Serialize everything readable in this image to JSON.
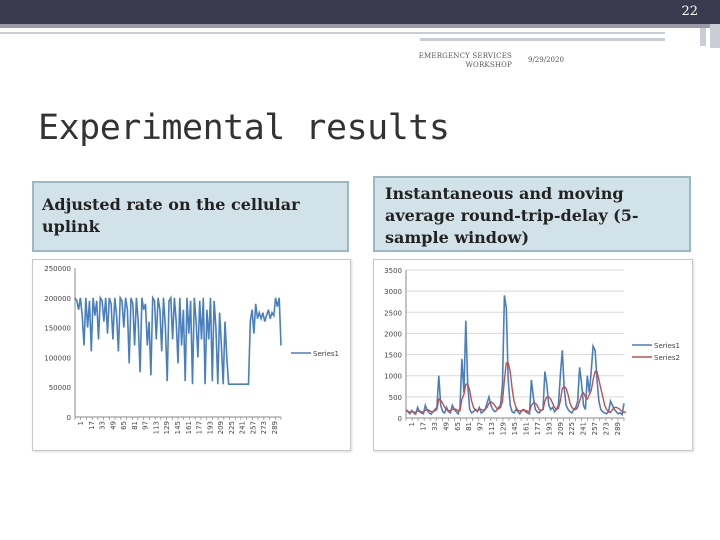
{
  "header": {
    "slide_number": "22",
    "event": "EMERGENCY SERVICES WORKSHOP",
    "date": "9/29/2020"
  },
  "title": "Experimental results",
  "captions": {
    "left": "Adjusted rate on the cellular uplink",
    "right": "Instantaneous and moving average round-trip-delay (5-sample window)"
  },
  "colors": {
    "series1": "#4a7fbd",
    "series2": "#c0504d",
    "caption_bg": "#d1e3e9",
    "topbar": "#3b3b4f"
  },
  "chart_data": [
    {
      "type": "line",
      "title": "",
      "xlabel": "",
      "ylabel": "",
      "ylim": [
        0,
        250000
      ],
      "yticks": [
        "250000",
        "200000",
        "150000",
        "100000",
        "50000",
        "0"
      ],
      "xtick_labels": [
        "1",
        "17",
        "33",
        "49",
        "65",
        "81",
        "97",
        "113",
        "129",
        "145",
        "161",
        "177",
        "193",
        "209",
        "225",
        "241",
        "257",
        "273",
        "289"
      ],
      "legend": "right",
      "grid": false,
      "series": [
        {
          "name": "Series1",
          "values": [
            200000,
            195000,
            180000,
            200000,
            170000,
            120000,
            200000,
            150000,
            195000,
            110000,
            200000,
            170000,
            195000,
            130000,
            200000,
            195000,
            160000,
            200000,
            140000,
            200000,
            190000,
            130000,
            200000,
            170000,
            110000,
            200000,
            195000,
            150000,
            200000,
            180000,
            90000,
            200000,
            190000,
            120000,
            200000,
            160000,
            75000,
            200000,
            180000,
            190000,
            120000,
            160000,
            70000,
            200000,
            195000,
            130000,
            200000,
            180000,
            110000,
            200000,
            150000,
            60000,
            195000,
            200000,
            130000,
            200000,
            160000,
            90000,
            200000,
            120000,
            180000,
            60000,
            200000,
            140000,
            195000,
            55000,
            200000,
            160000,
            100000,
            195000,
            130000,
            200000,
            55000,
            180000,
            130000,
            200000,
            60000,
            195000,
            150000,
            55000,
            175000,
            120000,
            55000,
            160000,
            100000,
            55000,
            55000,
            55000,
            55000,
            55000,
            55000,
            55000,
            55000,
            55000,
            55000,
            55000,
            55000,
            160000,
            180000,
            140000,
            190000,
            165000,
            175000,
            165000,
            175000,
            160000,
            170000,
            180000,
            165000,
            175000,
            170000,
            200000,
            185000,
            200000,
            120000
          ]
        }
      ]
    },
    {
      "type": "line",
      "title": "",
      "xlabel": "",
      "ylabel": "",
      "ylim": [
        0,
        3500
      ],
      "yticks": [
        "3500",
        "3000",
        "2500",
        "2000",
        "1500",
        "1000",
        "500",
        "0"
      ],
      "xtick_labels": [
        "1",
        "17",
        "33",
        "49",
        "65",
        "81",
        "97",
        "113",
        "129",
        "145",
        "161",
        "177",
        "193",
        "209",
        "225",
        "241",
        "257",
        "273",
        "289"
      ],
      "legend": "right",
      "grid": true,
      "series": [
        {
          "name": "Series1",
          "values": [
            200,
            150,
            100,
            180,
            120,
            90,
            250,
            150,
            120,
            100,
            300,
            180,
            120,
            90,
            150,
            200,
            250,
            1000,
            300,
            150,
            120,
            250,
            150,
            120,
            300,
            200,
            150,
            100,
            250,
            1400,
            600,
            2300,
            800,
            200,
            120,
            150,
            200,
            150,
            250,
            120,
            150,
            200,
            350,
            500,
            300,
            200,
            150,
            180,
            250,
            300,
            800,
            2900,
            2600,
            900,
            300,
            150,
            120,
            200,
            150,
            100,
            180,
            200,
            150,
            120,
            100,
            900,
            500,
            200,
            150,
            120,
            180,
            200,
            1100,
            800,
            300,
            200,
            250,
            150,
            200,
            300,
            1000,
            1600,
            700,
            300,
            200,
            150,
            120,
            200,
            250,
            400,
            1200,
            800,
            300,
            200,
            1000,
            600,
            1100,
            1700,
            1600,
            900,
            400,
            200,
            150,
            120,
            100,
            150,
            400,
            300,
            200,
            150,
            100,
            120,
            80,
            350
          ]
        },
        {
          "name": "Series2",
          "values": [
            180,
            160,
            140,
            150,
            140,
            130,
            160,
            170,
            150,
            140,
            180,
            200,
            180,
            150,
            150,
            170,
            200,
            450,
            420,
            350,
            250,
            200,
            180,
            170,
            200,
            220,
            200,
            170,
            180,
            450,
            550,
            800,
            800,
            650,
            400,
            250,
            180,
            180,
            200,
            200,
            190,
            200,
            250,
            350,
            380,
            350,
            300,
            230,
            220,
            250,
            400,
            900,
            1300,
            1300,
            1100,
            700,
            400,
            250,
            180,
            170,
            170,
            180,
            180,
            160,
            150,
            300,
            350,
            350,
            300,
            200,
            180,
            200,
            400,
            500,
            500,
            450,
            350,
            250,
            200,
            230,
            400,
            700,
            750,
            700,
            550,
            350,
            250,
            200,
            200,
            250,
            400,
            550,
            600,
            500,
            450,
            550,
            650,
            900,
            1100,
            1100,
            900,
            700,
            500,
            300,
            200,
            150,
            130,
            200,
            250,
            250,
            230,
            200,
            150,
            130,
            150
          ]
        }
      ]
    }
  ]
}
